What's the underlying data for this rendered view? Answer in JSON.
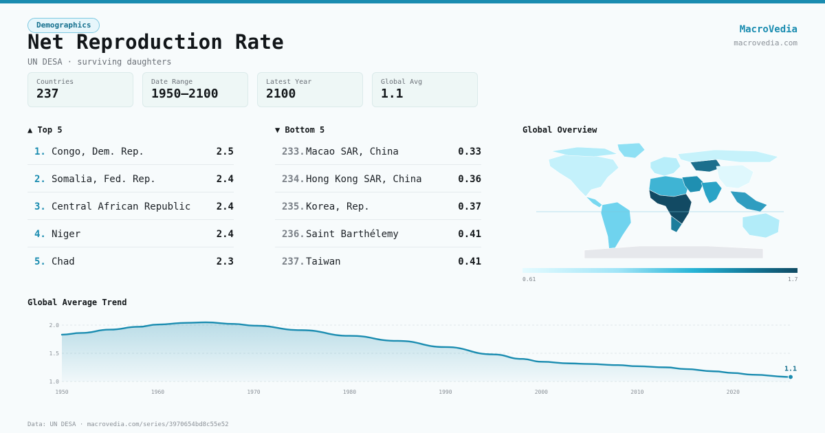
{
  "header": {
    "badge": "Demographics",
    "title": "Net Reproduction Rate",
    "subtitle": "UN DESA · surviving daughters",
    "brand": "MacroVedia",
    "site": "macrovedia.com"
  },
  "stats": [
    {
      "label": "Countries",
      "value": "237"
    },
    {
      "label": "Date Range",
      "value": "1950–2100"
    },
    {
      "label": "Latest Year",
      "value": "2100"
    },
    {
      "label": "Global Avg",
      "value": "1.1"
    }
  ],
  "top5": {
    "heading": "▲ Top 5",
    "rows": [
      {
        "rank": "1.",
        "name": "Congo, Dem. Rep.",
        "value": "2.5"
      },
      {
        "rank": "2.",
        "name": "Somalia, Fed. Rep.",
        "value": "2.4"
      },
      {
        "rank": "3.",
        "name": "Central African Republic",
        "value": "2.4"
      },
      {
        "rank": "4.",
        "name": "Niger",
        "value": "2.4"
      },
      {
        "rank": "5.",
        "name": "Chad",
        "value": "2.3"
      }
    ]
  },
  "bottom5": {
    "heading": "▼ Bottom 5",
    "rows": [
      {
        "rank": "233.",
        "name": "Macao SAR, China",
        "value": "0.33"
      },
      {
        "rank": "234.",
        "name": "Hong Kong SAR, China",
        "value": "0.36"
      },
      {
        "rank": "235.",
        "name": "Korea, Rep.",
        "value": "0.37"
      },
      {
        "rank": "236.",
        "name": "Saint Barthélemy",
        "value": "0.41"
      },
      {
        "rank": "237.",
        "name": "Taiwan",
        "value": "0.41"
      }
    ]
  },
  "map": {
    "heading": "Global Overview",
    "legend_min": "0.61",
    "legend_max": "1.7",
    "colors": {
      "low": "#e4fbff",
      "mid": "#27b4d6",
      "high": "#104a63"
    }
  },
  "chart_data": {
    "type": "area",
    "title": "Global Average Trend",
    "x": [
      1950,
      1952,
      1955,
      1958,
      1960,
      1963,
      1965,
      1968,
      1970,
      1975,
      1980,
      1985,
      1990,
      1995,
      1998,
      2000,
      2003,
      2005,
      2008,
      2010,
      2013,
      2015,
      2018,
      2020,
      2022,
      2026
    ],
    "y": [
      1.83,
      1.86,
      1.92,
      1.97,
      2.01,
      2.04,
      2.05,
      2.02,
      1.99,
      1.91,
      1.81,
      1.72,
      1.61,
      1.48,
      1.4,
      1.35,
      1.32,
      1.31,
      1.29,
      1.27,
      1.25,
      1.22,
      1.18,
      1.15,
      1.12,
      1.08
    ],
    "xticks": [
      1950,
      1960,
      1970,
      1980,
      1990,
      2000,
      2010,
      2020
    ],
    "yticks": [
      "1.0",
      "1.5",
      "2.0"
    ],
    "xlim": [
      1950,
      2026
    ],
    "ylim": [
      1.0,
      2.0
    ],
    "last_label": "1.1",
    "grid": true,
    "color": "#1a8cb0"
  },
  "footer": "Data: UN DESA · macrovedia.com/series/3970654bd8c55e52"
}
